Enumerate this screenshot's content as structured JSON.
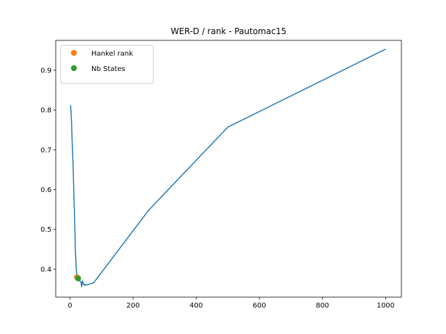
{
  "chart_data": {
    "type": "line",
    "title": "WER-D / rank - Pautomac15",
    "xlabel": "",
    "ylabel": "",
    "xlim": [
      -45,
      1050
    ],
    "ylim": [
      0.33,
      0.975
    ],
    "xticks": [
      0,
      200,
      400,
      600,
      800,
      1000
    ],
    "yticks": [
      0.4,
      0.5,
      0.6,
      0.7,
      0.8,
      0.9
    ],
    "xtick_labels": [
      "0",
      "200",
      "400",
      "600",
      "800",
      "1000"
    ],
    "ytick_labels": [
      "0.4",
      "0.5",
      "0.6",
      "0.7",
      "0.8",
      "0.9"
    ],
    "grid": false,
    "legend_position": "top-left",
    "series": [
      {
        "kind": "line",
        "color": "#1f77b4",
        "x": [
          2,
          5,
          7,
          10,
          12,
          15,
          17,
          20,
          22,
          25,
          27,
          30,
          32,
          35,
          37,
          40,
          42,
          45,
          47,
          50,
          75,
          250,
          500,
          1000
        ],
        "y": [
          0.812,
          0.77,
          0.72,
          0.66,
          0.6,
          0.52,
          0.45,
          0.4,
          0.38,
          0.375,
          0.377,
          0.372,
          0.37,
          0.368,
          0.356,
          0.371,
          0.365,
          0.36,
          0.362,
          0.36,
          0.366,
          0.549,
          0.757,
          0.953
        ]
      },
      {
        "kind": "point",
        "name": "Hankel rank",
        "color": "#ff7f0e",
        "x": [
          22
        ],
        "y": [
          0.38
        ]
      },
      {
        "kind": "point",
        "name": "Nb States",
        "color": "#2ca02c",
        "x": [
          26
        ],
        "y": [
          0.377
        ]
      }
    ]
  }
}
